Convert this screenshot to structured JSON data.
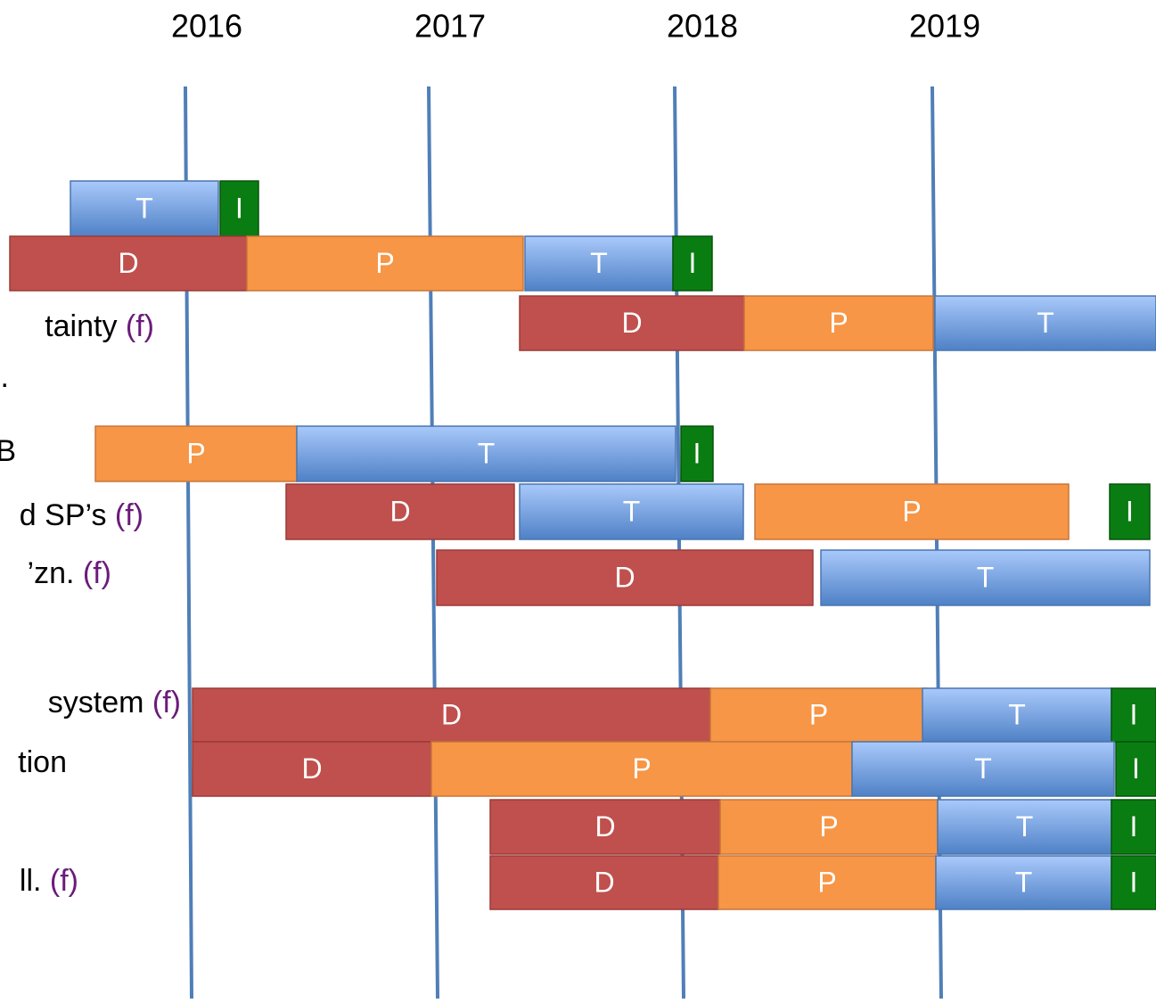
{
  "years": [
    "2016",
    "2017",
    "2018",
    "2019"
  ],
  "labels": [
    {
      "text": "tainty",
      "tag": "(f)"
    },
    {
      "text": "."
    },
    {
      "text": "B"
    },
    {
      "text": "d SP’s",
      "tag": "(f)"
    },
    {
      "text": "’zn.",
      "tag": "(f)"
    },
    {
      "text": "system",
      "tag": "(f)"
    },
    {
      "text": "tion"
    },
    {
      "text": "ll.",
      "tag": "(f)"
    }
  ],
  "rows": [
    {
      "segments": [
        "T",
        "I"
      ]
    },
    {
      "segments": [
        "D",
        "P",
        "T",
        "I"
      ]
    },
    {
      "segments": [
        "D",
        "P",
        "T"
      ]
    },
    {
      "segments": [
        "P",
        "T",
        "I"
      ]
    },
    {
      "segments": [
        "D",
        "T",
        "P",
        "I"
      ]
    },
    {
      "segments": [
        "D",
        "T"
      ]
    },
    {
      "segments": [
        "D",
        "P",
        "T",
        "I"
      ]
    },
    {
      "segments": [
        "D",
        "P",
        "T",
        "I"
      ]
    },
    {
      "segments": [
        "D",
        "P",
        "T",
        "I"
      ]
    },
    {
      "segments": [
        "D",
        "P",
        "T",
        "I"
      ]
    }
  ]
}
